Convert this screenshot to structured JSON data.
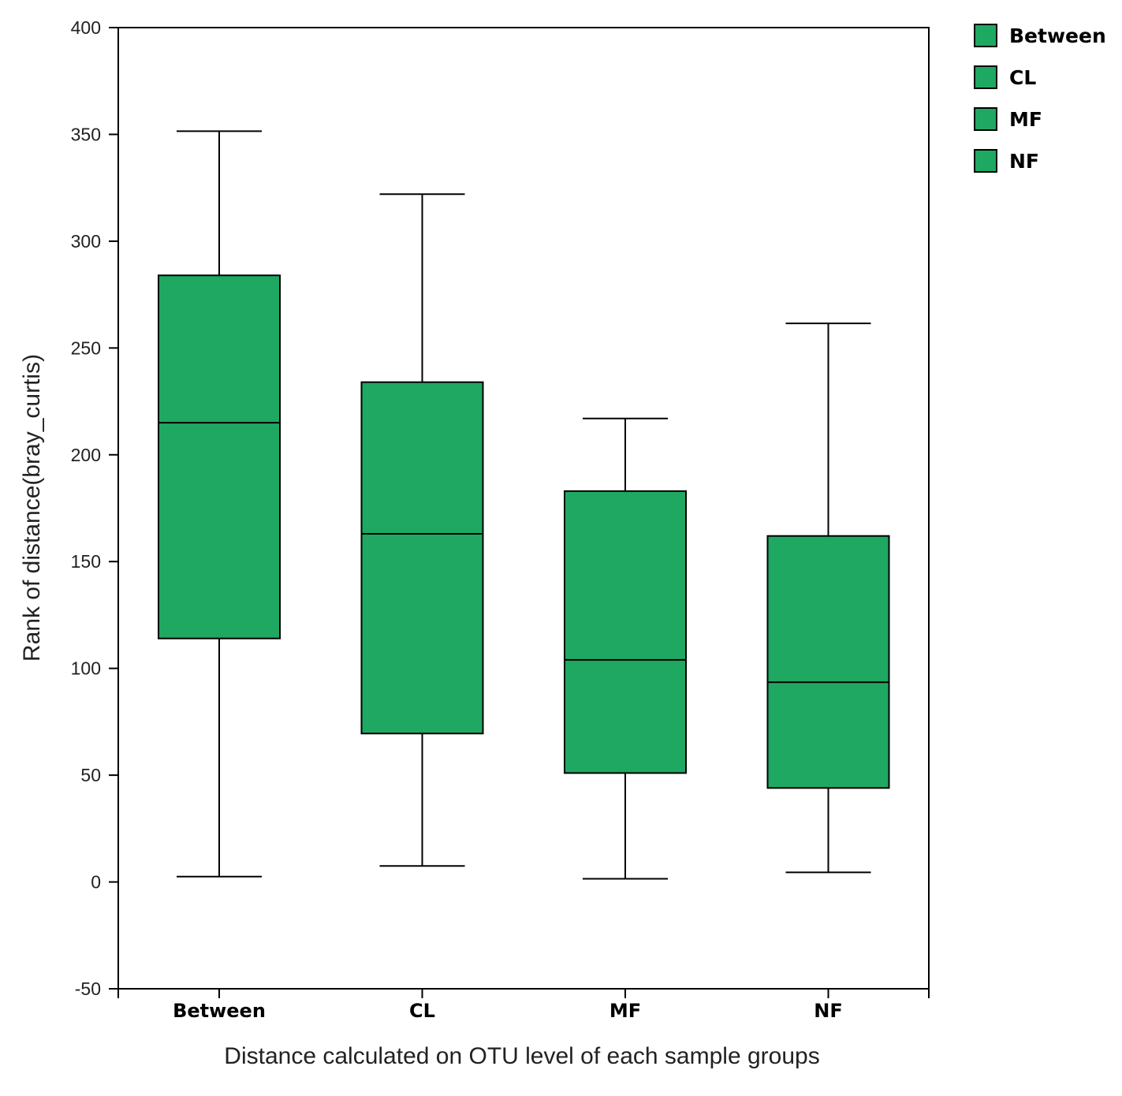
{
  "chart_data": {
    "type": "box",
    "title": "",
    "xlabel": "Distance calculated on OTU level of each  sample groups",
    "ylabel": "Rank of  distance(bray_curtis)",
    "ylim": [
      -50,
      400
    ],
    "yticks": [
      -50,
      0,
      50,
      100,
      150,
      200,
      250,
      300,
      350,
      400
    ],
    "categories": [
      "Between",
      "CL",
      "MF",
      "NF"
    ],
    "boxes": [
      {
        "name": "Between",
        "whisker_low": 2.5,
        "q1": 114,
        "median": 215,
        "q3": 284,
        "whisker_high": 351.5
      },
      {
        "name": "CL",
        "whisker_low": 7.5,
        "q1": 69.5,
        "median": 163,
        "q3": 234,
        "whisker_high": 322
      },
      {
        "name": "MF",
        "whisker_low": 1.5,
        "q1": 51,
        "median": 104,
        "q3": 183,
        "whisker_high": 217
      },
      {
        "name": "NF",
        "whisker_low": 4.5,
        "q1": 44,
        "median": 93.5,
        "q3": 162,
        "whisker_high": 261.5
      }
    ],
    "legend": {
      "entries": [
        "Between",
        "CL",
        "MF",
        "NF"
      ],
      "placement": "top-right, outside plot"
    },
    "grid": false,
    "colors": {
      "box_fill": "#1fa862",
      "line": "#000000"
    }
  }
}
